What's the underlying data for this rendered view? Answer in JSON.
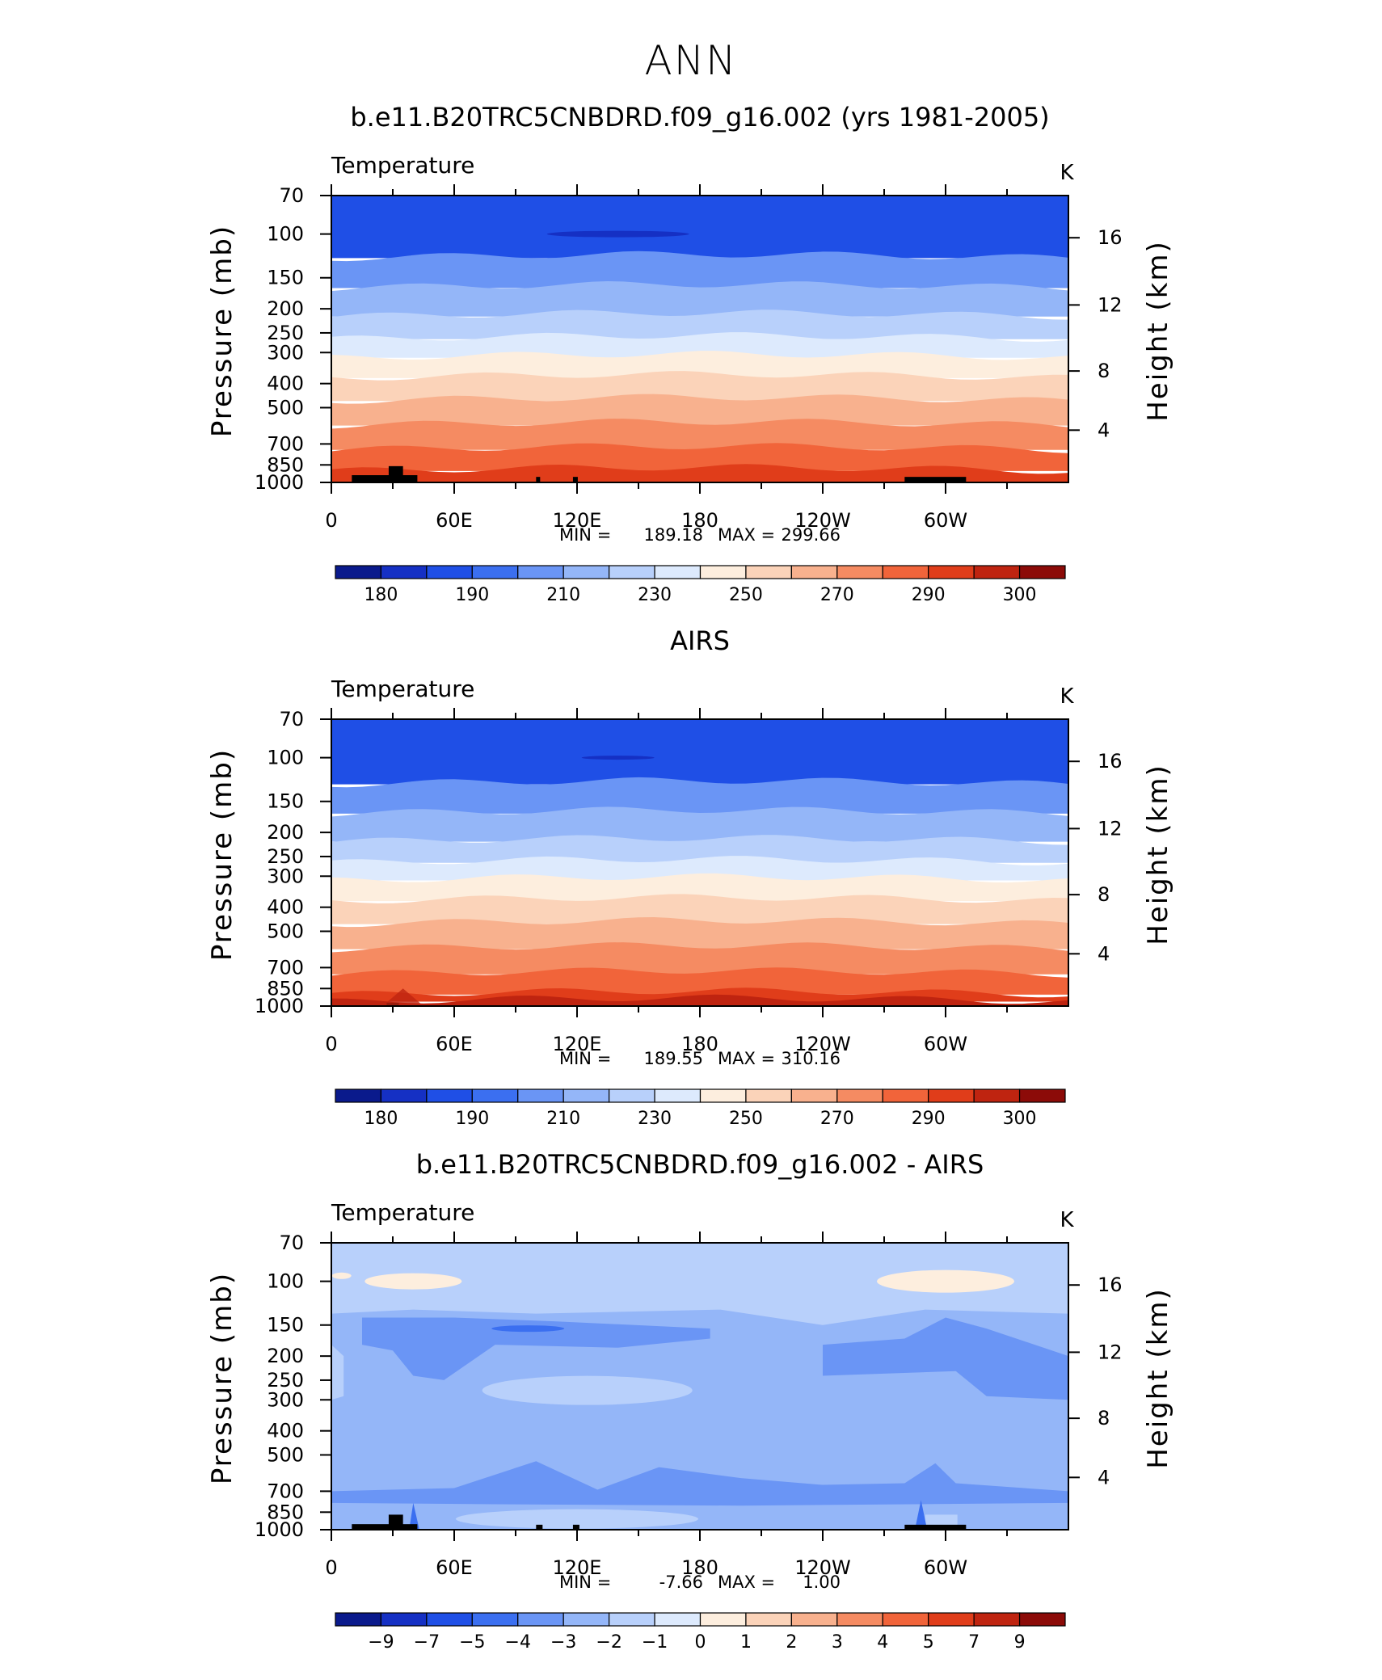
{
  "page": {
    "title": "ANN",
    "colors": {
      "temp_palette": [
        "#0a1a8c",
        "#1530c4",
        "#1f4fe6",
        "#3b6ff0",
        "#6a95f5",
        "#94b6f8",
        "#b8d0fb",
        "#ddeafd",
        "#fdeede",
        "#fbd3b9",
        "#f8b18e",
        "#f58b62",
        "#f1643a",
        "#e03d1a",
        "#bf2410",
        "#8c0b08"
      ],
      "diff_palette": [
        "#0a1a8c",
        "#1530c4",
        "#1f4fe6",
        "#3b6ff0",
        "#6a95f5",
        "#94b6f8",
        "#b8d0fb",
        "#ddeafd",
        "#fdeede",
        "#fbd3b9",
        "#f8b18e",
        "#f58b62",
        "#f1643a",
        "#e03d1a",
        "#bf2410",
        "#8c0b08"
      ],
      "land_mask": "#000000"
    }
  },
  "chart_data": [
    {
      "type": "heatmap",
      "title": "b.e11.B20TRC5CNBDRD.f09_g16.002 (yrs 1981-2005)",
      "left_label": "Temperature",
      "units": "K",
      "ylabel": "Pressure (mb)",
      "ylabel_right": "Height (km)",
      "xticks": [
        "0",
        "60E",
        "120E",
        "180",
        "120W",
        "60W"
      ],
      "yticks": [
        "70",
        "100",
        "150",
        "200",
        "250",
        "300",
        "400",
        "500",
        "700",
        "850",
        "1000"
      ],
      "yticks_right": [
        "16",
        "12",
        "8",
        "4"
      ],
      "minmax": {
        "min_label": "MIN",
        "min": "189.18",
        "max_label": "MAX",
        "max": "299.66"
      },
      "colorbar_labels": [
        "180",
        "190",
        "210",
        "230",
        "250",
        "270",
        "290",
        "300"
      ],
      "bands_by_pressure": [
        {
          "p_top": 70,
          "p_bottom": 125,
          "level": 2
        },
        {
          "p_top": 125,
          "p_bottom": 165,
          "level": 4
        },
        {
          "p_top": 165,
          "p_bottom": 215,
          "level": 5
        },
        {
          "p_top": 215,
          "p_bottom": 265,
          "level": 6
        },
        {
          "p_top": 265,
          "p_bottom": 315,
          "level": 7
        },
        {
          "p_top": 315,
          "p_bottom": 380,
          "level": 8
        },
        {
          "p_top": 380,
          "p_bottom": 470,
          "level": 9
        },
        {
          "p_top": 470,
          "p_bottom": 590,
          "level": 10
        },
        {
          "p_top": 590,
          "p_bottom": 740,
          "level": 11
        },
        {
          "p_top": 740,
          "p_bottom": 900,
          "level": 12
        },
        {
          "p_top": 900,
          "p_bottom": 1000,
          "level": 13
        }
      ]
    },
    {
      "type": "heatmap",
      "title": "AIRS",
      "left_label": "Temperature",
      "units": "K",
      "ylabel": "Pressure (mb)",
      "ylabel_right": "Height (km)",
      "xticks": [
        "0",
        "60E",
        "120E",
        "180",
        "120W",
        "60W"
      ],
      "yticks": [
        "70",
        "100",
        "150",
        "200",
        "250",
        "300",
        "400",
        "500",
        "700",
        "850",
        "1000"
      ],
      "yticks_right": [
        "16",
        "12",
        "8",
        "4"
      ],
      "minmax": {
        "min_label": "MIN",
        "min": "189.55",
        "max_label": "MAX",
        "max": "310.16"
      },
      "colorbar_labels": [
        "180",
        "190",
        "210",
        "230",
        "250",
        "270",
        "290",
        "300"
      ],
      "bands_by_pressure": [
        {
          "p_top": 70,
          "p_bottom": 128,
          "level": 2
        },
        {
          "p_top": 128,
          "p_bottom": 168,
          "level": 4
        },
        {
          "p_top": 168,
          "p_bottom": 218,
          "level": 5
        },
        {
          "p_top": 218,
          "p_bottom": 265,
          "level": 6
        },
        {
          "p_top": 265,
          "p_bottom": 312,
          "level": 7
        },
        {
          "p_top": 312,
          "p_bottom": 378,
          "level": 8
        },
        {
          "p_top": 378,
          "p_bottom": 468,
          "level": 9
        },
        {
          "p_top": 468,
          "p_bottom": 590,
          "level": 10
        },
        {
          "p_top": 590,
          "p_bottom": 745,
          "level": 11
        },
        {
          "p_top": 745,
          "p_bottom": 900,
          "level": 12
        },
        {
          "p_top": 900,
          "p_bottom": 960,
          "level": 13
        },
        {
          "p_top": 960,
          "p_bottom": 1000,
          "level": 14
        }
      ]
    },
    {
      "type": "heatmap",
      "title": "b.e11.B20TRC5CNBDRD.f09_g16.002 - AIRS",
      "left_label": "Temperature",
      "units": "K",
      "ylabel": "Pressure (mb)",
      "ylabel_right": "Height (km)",
      "xticks": [
        "0",
        "60E",
        "120E",
        "180",
        "120W",
        "60W"
      ],
      "yticks": [
        "70",
        "100",
        "150",
        "200",
        "250",
        "300",
        "400",
        "500",
        "700",
        "850",
        "1000"
      ],
      "yticks_right": [
        "16",
        "12",
        "8",
        "4"
      ],
      "minmax": {
        "min_label": "MIN",
        "min": "-7.66",
        "max_label": "MAX",
        "max": "1.00"
      },
      "colorbar_labels": [
        "−9",
        "−7",
        "−5",
        "−4",
        "−3",
        "−2",
        "−1",
        "0",
        "1",
        "2",
        "3",
        "4",
        "5",
        "7",
        "9"
      ]
    }
  ]
}
